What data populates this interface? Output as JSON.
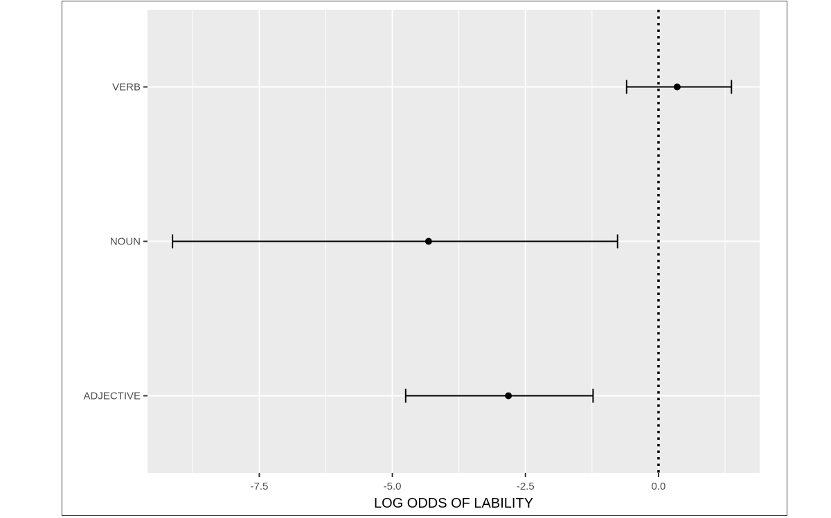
{
  "chart_data": {
    "type": "scatter",
    "title": "",
    "xlabel": "LOG ODDS OF LABILITY",
    "ylabel": "",
    "xlim": [
      -9.6,
      1.9
    ],
    "x_ticks": [
      -7.5,
      -5.0,
      -2.5,
      0.0
    ],
    "x_tick_labels": [
      "-7.5",
      "-5.0",
      "-2.5",
      "0.0"
    ],
    "categories": [
      "VERB",
      "NOUN",
      "ADJECTIVE"
    ],
    "points": [
      {
        "category": "VERB",
        "estimate": 0.35,
        "lower": -0.6,
        "upper": 1.37
      },
      {
        "category": "NOUN",
        "estimate": -4.32,
        "lower": -9.13,
        "upper": -0.77
      },
      {
        "category": "ADJECTIVE",
        "estimate": -2.82,
        "lower": -4.75,
        "upper": -1.23
      }
    ],
    "reference_line": {
      "x": 0,
      "style": "dotted"
    },
    "grid": true,
    "legend": "none",
    "colors": {
      "panel": "#ebebeb",
      "grid": "#ffffff",
      "marks": "#000000",
      "tick_text": "#4d4d4d"
    }
  }
}
